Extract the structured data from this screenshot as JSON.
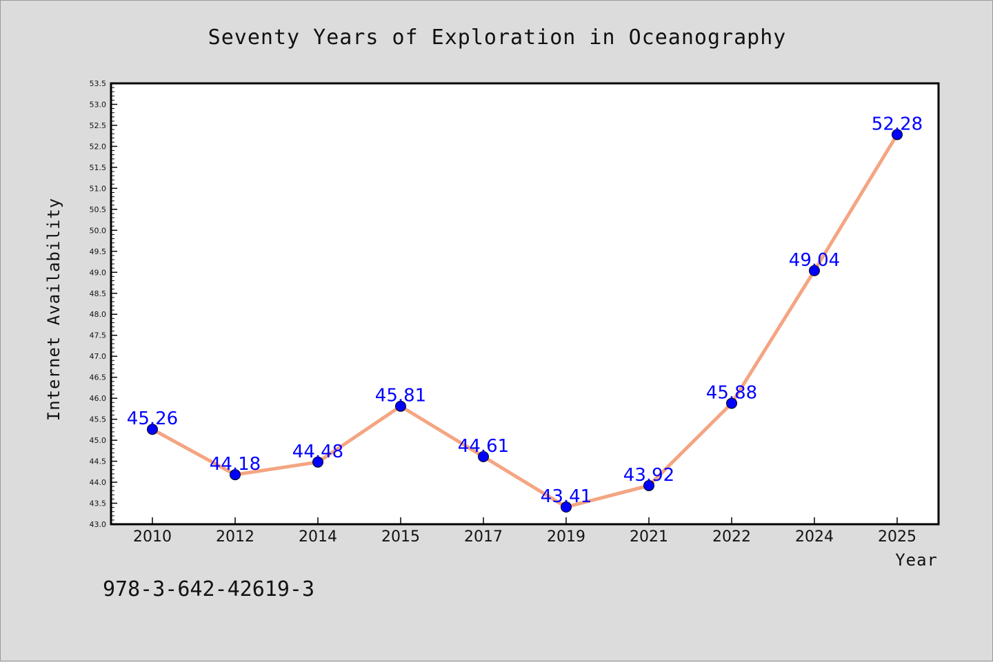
{
  "colors": {
    "background": "#dcdcdc",
    "plot_background": "#ffffff",
    "line": "#f4a582",
    "marker": "#0000ff",
    "data_label": "#0000ff"
  },
  "note": "978-3-642-42619-3",
  "chart_data": {
    "type": "line",
    "title": "Seventy Years of Exploration in Oceanography",
    "xlabel": "Year",
    "ylabel": "Internet Availability",
    "categories": [
      "2010",
      "2012",
      "2014",
      "2015",
      "2017",
      "2019",
      "2021",
      "2022",
      "2024",
      "2025"
    ],
    "series": [
      {
        "values": [
          45.26,
          44.18,
          44.48,
          45.81,
          44.61,
          43.41,
          43.92,
          45.88,
          49.04,
          52.28
        ],
        "labels": [
          "45.26",
          "44.18",
          "44.48",
          "45.81",
          "44.61",
          "43.41",
          "43.92",
          "45.88",
          "49.04",
          "52.28"
        ]
      }
    ],
    "ylim": [
      43.0,
      53.5
    ],
    "yticks": [
      "43.0",
      "43.5",
      "44.0",
      "44.5",
      "45.0",
      "45.5",
      "46.0",
      "46.5",
      "47.0",
      "47.5",
      "48.0",
      "48.5",
      "49.0",
      "49.5",
      "50.0",
      "50.5",
      "51.0",
      "51.5",
      "52.0",
      "52.5",
      "53.0",
      "53.5"
    ],
    "grid": false,
    "legend": "none"
  }
}
